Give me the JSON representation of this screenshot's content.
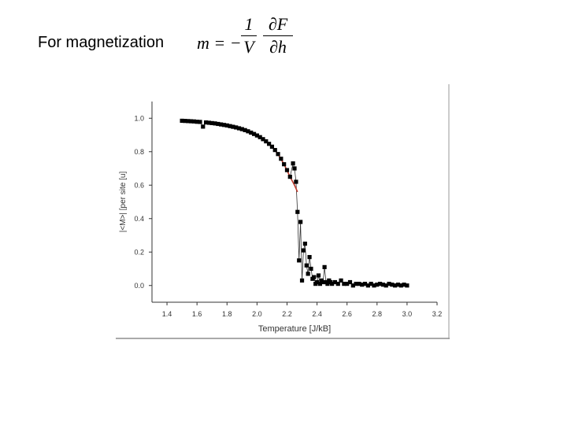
{
  "slide": {
    "heading": "For magnetization",
    "formula": {
      "lhs": "m = −",
      "frac1_num": "1",
      "frac1_den": "V",
      "frac2_num": "∂F",
      "frac2_den": "∂h"
    }
  },
  "chart_data": {
    "type": "scatter",
    "xlabel": "Temperature [J/kB]",
    "ylabel": "|<M>| [per site [u]",
    "xlim": [
      1.3,
      3.2
    ],
    "ylim": [
      -0.1,
      1.1
    ],
    "xticks": [
      "1.4",
      "1.6",
      "1.8",
      "2.0",
      "2.2",
      "2.4",
      "2.6",
      "2.8",
      "3.0",
      "3.2"
    ],
    "yticks": [
      "0.0",
      "0.2",
      "0.4",
      "0.6",
      "0.8",
      "1.0"
    ],
    "grid": false,
    "colors": {
      "points": "#000000",
      "fit": "#c0392b",
      "connector": "#333333"
    },
    "series": [
      {
        "x": [
          1.5,
          1.52,
          1.54,
          1.56,
          1.58,
          1.6,
          1.62,
          1.64,
          1.66,
          1.68,
          1.7,
          1.72,
          1.74,
          1.76,
          1.78,
          1.8,
          1.82,
          1.84,
          1.86,
          1.88,
          1.9,
          1.92,
          1.94,
          1.96,
          1.98,
          2.0,
          2.02,
          2.04,
          2.06,
          2.08,
          2.1,
          2.12,
          2.14,
          2.16,
          2.18,
          2.2,
          2.22,
          2.24,
          2.25,
          2.26,
          2.27,
          2.28,
          2.29,
          2.3,
          2.31,
          2.32,
          2.33,
          2.34,
          2.35,
          2.36,
          2.37,
          2.38,
          2.39,
          2.4,
          2.41,
          2.42,
          2.43,
          2.44,
          2.45,
          2.46,
          2.47,
          2.48,
          2.49,
          2.5,
          2.52,
          2.54,
          2.56,
          2.58,
          2.6,
          2.62,
          2.64,
          2.66,
          2.68,
          2.7,
          2.72,
          2.74,
          2.76,
          2.78,
          2.8,
          2.82,
          2.84,
          2.86,
          2.88,
          2.9,
          2.92,
          2.94,
          2.96,
          2.98,
          3.0
        ],
        "y": [
          0.985,
          0.984,
          0.983,
          0.982,
          0.981,
          0.979,
          0.978,
          0.95,
          0.975,
          0.973,
          0.971,
          0.969,
          0.966,
          0.963,
          0.96,
          0.957,
          0.953,
          0.949,
          0.945,
          0.94,
          0.935,
          0.929,
          0.922,
          0.914,
          0.906,
          0.897,
          0.887,
          0.875,
          0.862,
          0.847,
          0.83,
          0.81,
          0.786,
          0.758,
          0.725,
          0.69,
          0.65,
          0.73,
          0.7,
          0.62,
          0.44,
          0.15,
          0.38,
          0.03,
          0.21,
          0.25,
          0.12,
          0.07,
          0.17,
          0.1,
          0.04,
          0.05,
          0.01,
          0.02,
          0.06,
          0.01,
          0.03,
          0.02,
          0.11,
          0.02,
          0.01,
          0.03,
          0.02,
          0.01,
          0.02,
          0.01,
          0.03,
          0.01,
          0.01,
          0.02,
          0.0,
          0.01,
          0.01,
          0.005,
          0.01,
          0.0,
          0.01,
          0.0,
          0.005,
          0.01,
          0.005,
          0.0,
          0.01,
          0.005,
          0.0,
          0.005,
          0.0,
          0.005,
          0.0
        ]
      }
    ],
    "fit": {
      "x": [
        2.1,
        2.14,
        2.18,
        2.22,
        2.25,
        2.27
      ],
      "y": [
        0.83,
        0.786,
        0.725,
        0.65,
        0.6,
        0.56
      ]
    }
  }
}
